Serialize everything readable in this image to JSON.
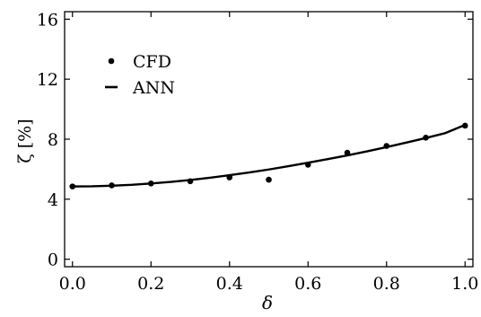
{
  "chart_data": {
    "type": "scatter",
    "title": "",
    "xlabel": "δ",
    "ylabel": "ζ [%]",
    "xlim": [
      -0.02,
      1.02
    ],
    "ylim": [
      -0.5,
      16.5
    ],
    "x_ticks": [
      0.0,
      0.2,
      0.4,
      0.6,
      0.8,
      1.0
    ],
    "x_tick_labels": [
      "0.0",
      "0.2",
      "0.4",
      "0.6",
      "0.8",
      "1.0"
    ],
    "y_ticks": [
      0,
      4,
      8,
      12,
      16
    ],
    "y_tick_labels": [
      "0",
      "4",
      "8",
      "12",
      "16"
    ],
    "grid": false,
    "legend_position": "top-left",
    "series": [
      {
        "name": "CFD",
        "kind": "markers",
        "x": [
          0.0,
          0.1,
          0.2,
          0.3,
          0.4,
          0.5,
          0.6,
          0.7,
          0.8,
          0.9,
          1.0
        ],
        "y": [
          4.85,
          4.92,
          5.05,
          5.2,
          5.45,
          5.3,
          6.3,
          7.1,
          7.55,
          8.1,
          8.9
        ]
      },
      {
        "name": "ANN",
        "kind": "line",
        "x": [
          0.0,
          0.05,
          0.1,
          0.15,
          0.2,
          0.25,
          0.3,
          0.35,
          0.4,
          0.45,
          0.5,
          0.55,
          0.6,
          0.65,
          0.7,
          0.75,
          0.8,
          0.85,
          0.9,
          0.95,
          1.0
        ],
        "y": [
          4.85,
          4.86,
          4.9,
          4.96,
          5.05,
          5.15,
          5.28,
          5.43,
          5.6,
          5.78,
          5.98,
          6.2,
          6.43,
          6.67,
          6.92,
          7.19,
          7.47,
          7.77,
          8.08,
          8.41,
          8.95
        ]
      }
    ],
    "colors": {
      "series": "#000000",
      "axes": "#000000"
    }
  }
}
